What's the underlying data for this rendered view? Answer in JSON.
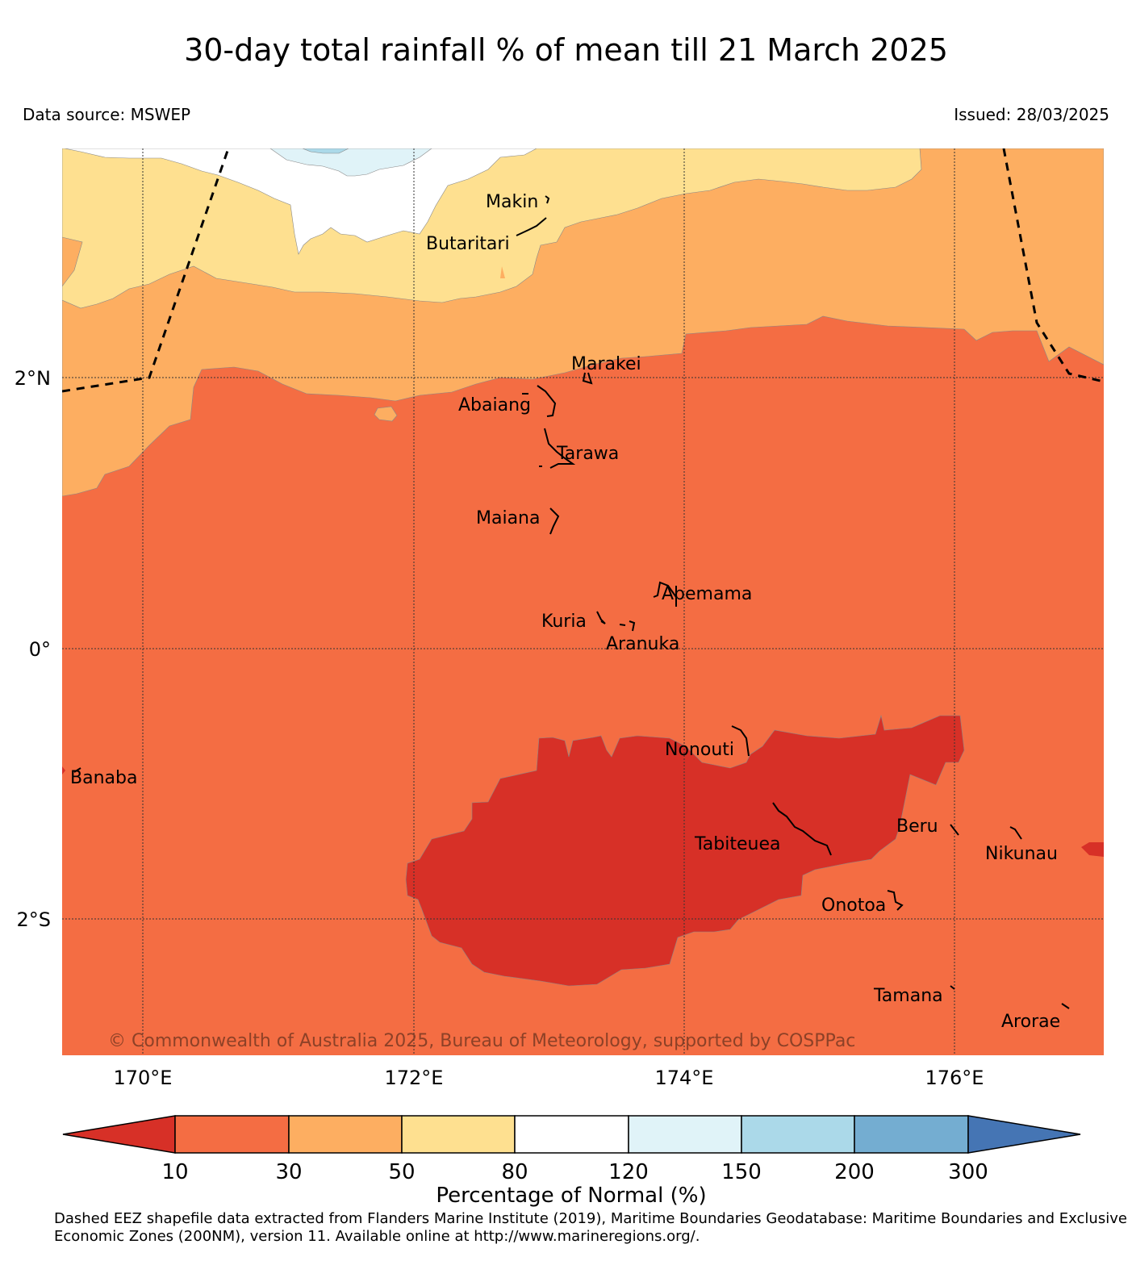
{
  "header": {
    "title": "30-day total rainfall % of mean till 21 March 2025",
    "data_source": "Data source: MSWEP",
    "issued": "Issued: 28/03/2025"
  },
  "map": {
    "lat_labels": [
      "2°N",
      "0°",
      "2°S"
    ],
    "lon_labels": [
      "170°E",
      "172°E",
      "174°E",
      "176°E"
    ],
    "places": [
      {
        "name": "Makin"
      },
      {
        "name": "Butaritari"
      },
      {
        "name": "Marakei"
      },
      {
        "name": "Abaiang"
      },
      {
        "name": "Tarawa"
      },
      {
        "name": "Maiana"
      },
      {
        "name": "Abemama"
      },
      {
        "name": "Kuria"
      },
      {
        "name": "Aranuka"
      },
      {
        "name": "Nonouti"
      },
      {
        "name": "Banaba"
      },
      {
        "name": "Tabiteuea"
      },
      {
        "name": "Beru"
      },
      {
        "name": "Nikunau"
      },
      {
        "name": "Onotoa"
      },
      {
        "name": "Tamana"
      },
      {
        "name": "Arorae"
      }
    ],
    "copyright": "© Commonwealth of Australia 2025, Bureau of Meteorology, supported by COSPPac",
    "colors": {
      "lt10": "#d73027",
      "b10_30": "#f46d43",
      "b30_50": "#fdae61",
      "b50_80": "#fee090",
      "b80_120": "#ffffff",
      "b120_150": "#e0f3f8",
      "b150_200": "#abd9e9",
      "b200_300": "#74add1",
      "gt300": "#4575b4"
    }
  },
  "legend": {
    "ticks": [
      "10",
      "30",
      "50",
      "80",
      "120",
      "150",
      "200",
      "300"
    ],
    "colors": [
      "#d73027",
      "#f46d43",
      "#fdae61",
      "#fee090",
      "#ffffff",
      "#e0f3f8",
      "#abd9e9",
      "#74add1",
      "#4575b4"
    ],
    "label": "Percentage of Normal (%)"
  },
  "footnote": "Dashed EEZ shapefile data extracted from Flanders Marine Institute (2019), Maritime Boundaries Geodatabase: Maritime Boundaries and Exclusive Economic Zones (200NM), version 11. Available online at http://www.marineregions.org/."
}
